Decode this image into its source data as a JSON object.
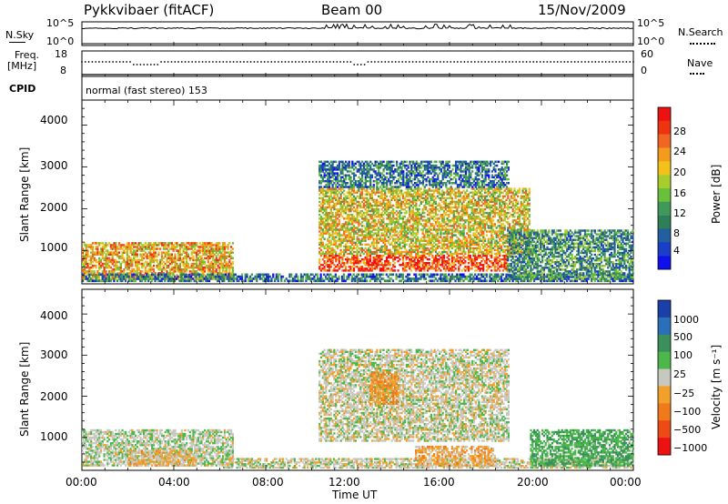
{
  "header": {
    "radar": "Pykkvibaer (fitACF)",
    "beam": "Beam 00",
    "date": "15/Nov/2009"
  },
  "nsky": {
    "label": "N.Sky",
    "tick_top": "10^5",
    "tick_bottom": "10^0",
    "right_tick_top": "10^5",
    "right_tick_bottom": "10^0",
    "right_label": "N.Search"
  },
  "freq": {
    "label_line1": "Freq.",
    "label_line2": "[MHz]",
    "tick_top": "18",
    "tick_bottom": "8",
    "right_tick_top": "60",
    "right_tick_bottom": "0",
    "right_label": "Nave"
  },
  "cpid": {
    "label": "CPID",
    "text": "normal (fast stereo) 153"
  },
  "power_panel": {
    "ylabel": "Slant Range [km]",
    "yticks": [
      "4000",
      "3000",
      "2000",
      "1000"
    ],
    "colorbar_label": "Power [dB]",
    "colorbar_ticks": [
      "28",
      "24",
      "20",
      "16",
      "12",
      "8",
      "4"
    ],
    "colorbar_colors": [
      "#ee1111",
      "#ee3311",
      "#f06622",
      "#f49a1c",
      "#f2c21a",
      "#a8cc2a",
      "#6abf3c",
      "#3f9a5a",
      "#2e7f58",
      "#235ea0",
      "#1a3ec8",
      "#1010ee"
    ]
  },
  "velocity_panel": {
    "ylabel": "Slant Range [km]",
    "yticks": [
      "4000",
      "3000",
      "2000",
      "1000"
    ],
    "colorbar_label": "Velocity [m s⁻¹]",
    "colorbar_ticks": [
      "1000",
      "500",
      "100",
      "25",
      "−25",
      "−100",
      "−500",
      "−1000"
    ],
    "colorbar_colors": [
      "#1b3fa8",
      "#2a6fb8",
      "#3b8f5a",
      "#4cb84c",
      "#c8c8c0",
      "#f2a02a",
      "#f07a1a",
      "#ee4a14",
      "#ee1111"
    ]
  },
  "xaxis": {
    "ticks": [
      "00:00",
      "04:00",
      "08:00",
      "12:00",
      "16:00",
      "20:00",
      "00:00"
    ],
    "label": "Time UT"
  },
  "chart_data": [
    {
      "type": "heatmap",
      "title": "Pykkvibaer (fitACF)",
      "xlabel": "Time UT",
      "ylabel": "Slant Range [km]",
      "xlim": [
        0,
        24
      ],
      "ylim": [
        200,
        4600
      ],
      "colorbar": {
        "label": "Power [dB]",
        "range": [
          0,
          30
        ]
      },
      "regions": [
        {
          "t0": 0.0,
          "t1": 6.6,
          "r0": 300,
          "r1": 1200,
          "value": 20
        },
        {
          "t0": 0.0,
          "t1": 24.0,
          "r0": 250,
          "r1": 450,
          "value": 8
        },
        {
          "t0": 10.3,
          "t1": 18.5,
          "r0": 500,
          "r1": 900,
          "value": 26
        },
        {
          "t0": 10.3,
          "t1": 19.5,
          "r0": 900,
          "r1": 2500,
          "value": 18
        },
        {
          "t0": 10.3,
          "t1": 18.6,
          "r0": 2500,
          "r1": 3150,
          "value": 8
        },
        {
          "t0": 18.5,
          "t1": 24.0,
          "r0": 300,
          "r1": 1500,
          "value": 10
        }
      ]
    },
    {
      "type": "heatmap",
      "xlabel": "Time UT",
      "ylabel": "Slant Range [km]",
      "xlim": [
        0,
        24
      ],
      "ylim": [
        200,
        4600
      ],
      "colorbar": {
        "label": "Velocity [m s⁻¹]",
        "range": [
          -1000,
          1000
        ]
      },
      "regions": [
        {
          "t0": 0.0,
          "t1": 6.6,
          "r0": 300,
          "r1": 1200,
          "value": 50
        },
        {
          "t0": 2.0,
          "t1": 5.0,
          "r0": 300,
          "r1": 700,
          "value": -150
        },
        {
          "t0": 6.0,
          "t1": 24.0,
          "r0": 250,
          "r1": 500,
          "value": 0
        },
        {
          "t0": 10.3,
          "t1": 18.6,
          "r0": 900,
          "r1": 3150,
          "value": 0
        },
        {
          "t0": 12.5,
          "t1": 13.8,
          "r0": 1800,
          "r1": 2600,
          "value": -300
        },
        {
          "t0": 14.5,
          "t1": 18.0,
          "r0": 300,
          "r1": 800,
          "value": -200
        },
        {
          "t0": 19.5,
          "t1": 24.0,
          "r0": 300,
          "r1": 1200,
          "value": 300
        }
      ]
    }
  ]
}
